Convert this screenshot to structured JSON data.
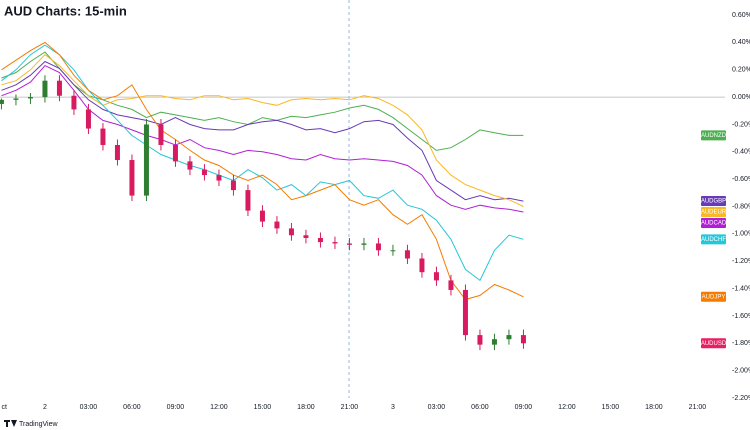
{
  "chart_data": {
    "type": "line",
    "title": "AUD Charts: 15-min",
    "watermark": "TradingView",
    "x": [
      -3,
      -2,
      -1,
      0,
      1,
      2,
      3,
      4,
      5,
      6,
      7,
      8,
      9,
      10,
      11,
      12,
      13,
      14,
      15,
      16,
      17,
      18,
      19,
      20,
      21,
      22,
      23,
      24,
      25,
      26,
      27,
      28,
      29,
      30,
      31,
      32,
      33
    ],
    "xlim": [
      -3.1,
      46.9
    ],
    "xticks": [
      {
        "value": -3,
        "label": "ct"
      },
      {
        "value": 0,
        "label": "2"
      },
      {
        "value": 3,
        "label": "03:00"
      },
      {
        "value": 6,
        "label": "06:00"
      },
      {
        "value": 9,
        "label": "09:00"
      },
      {
        "value": 12,
        "label": "12:00"
      },
      {
        "value": 15,
        "label": "15:00"
      },
      {
        "value": 18,
        "label": "18:00"
      },
      {
        "value": 21,
        "label": "21:00"
      },
      {
        "value": 24,
        "label": "3"
      },
      {
        "value": 27,
        "label": "03:00"
      },
      {
        "value": 30,
        "label": "06:00"
      },
      {
        "value": 33,
        "label": "09:00"
      },
      {
        "value": 36,
        "label": "12:00"
      },
      {
        "value": 39,
        "label": "15:00"
      },
      {
        "value": 42,
        "label": "18:00"
      },
      {
        "value": 45,
        "label": "21:00"
      }
    ],
    "ylim": [
      -2.2,
      0.71
    ],
    "yticks": [
      {
        "value": 0.6,
        "label": "0.60%"
      },
      {
        "value": 0.4,
        "label": "0.40%"
      },
      {
        "value": 0.2,
        "label": "0.20%"
      },
      {
        "value": 0,
        "label": "0.00%"
      },
      {
        "value": -0.2,
        "label": "-0.20%"
      },
      {
        "value": -0.4,
        "label": "-0.40%"
      },
      {
        "value": -0.6,
        "label": "-0.60%"
      },
      {
        "value": -0.8,
        "label": "-0.80%"
      },
      {
        "value": -1.0,
        "label": "-1.00%"
      },
      {
        "value": -1.2,
        "label": "-1.20%"
      },
      {
        "value": -1.4,
        "label": "-1.40%"
      },
      {
        "value": -1.6,
        "label": "-1.60%"
      },
      {
        "value": -1.8,
        "label": "-1.80%"
      },
      {
        "value": -2.0,
        "label": "-2.00%"
      },
      {
        "value": -2.2,
        "label": "-2.20%"
      }
    ],
    "series": [
      {
        "name": "AUDNZD",
        "color": "#4caf50",
        "values": [
          0.14,
          0.18,
          0.26,
          0.33,
          0.21,
          0.09,
          0.01,
          -0.02,
          -0.06,
          -0.09,
          -0.15,
          -0.11,
          -0.13,
          -0.15,
          -0.17,
          -0.15,
          -0.18,
          -0.2,
          -0.15,
          -0.17,
          -0.14,
          -0.15,
          -0.13,
          -0.11,
          -0.08,
          -0.06,
          -0.09,
          -0.15,
          -0.23,
          -0.31,
          -0.39,
          -0.37,
          -0.31,
          -0.24,
          -0.26,
          -0.28,
          -0.28
        ]
      },
      {
        "name": "AUDGBP",
        "color": "#673ab7",
        "values": [
          0.05,
          0.09,
          0.16,
          0.26,
          0.21,
          0.09,
          -0.02,
          -0.09,
          -0.13,
          -0.15,
          -0.17,
          -0.2,
          -0.15,
          -0.2,
          -0.23,
          -0.24,
          -0.24,
          -0.2,
          -0.18,
          -0.17,
          -0.2,
          -0.24,
          -0.23,
          -0.26,
          -0.23,
          -0.18,
          -0.17,
          -0.2,
          -0.3,
          -0.39,
          -0.61,
          -0.68,
          -0.75,
          -0.72,
          -0.75,
          -0.74,
          -0.76
        ]
      },
      {
        "name": "AUDEUR",
        "color": "#f9b825",
        "values": [
          0.09,
          0.12,
          0.2,
          0.31,
          0.23,
          0.12,
          0.01,
          -0.06,
          -0.02,
          -0.01,
          0.01,
          0.01,
          -0.01,
          -0.02,
          0.01,
          0.01,
          -0.02,
          -0.01,
          -0.04,
          -0.06,
          -0.02,
          -0.01,
          -0.02,
          -0.01,
          -0.02,
          0.01,
          -0.01,
          -0.06,
          -0.13,
          -0.24,
          -0.46,
          -0.57,
          -0.64,
          -0.68,
          -0.72,
          -0.75,
          -0.8
        ]
      },
      {
        "name": "AUDCAD",
        "color": "#b01fd6",
        "values": [
          0.01,
          0.05,
          0.11,
          0.23,
          0.18,
          0.05,
          -0.09,
          -0.17,
          -0.2,
          -0.24,
          -0.28,
          -0.31,
          -0.35,
          -0.31,
          -0.37,
          -0.39,
          -0.42,
          -0.39,
          -0.4,
          -0.42,
          -0.45,
          -0.46,
          -0.42,
          -0.45,
          -0.46,
          -0.45,
          -0.46,
          -0.47,
          -0.5,
          -0.57,
          -0.72,
          -0.79,
          -0.82,
          -0.79,
          -0.81,
          -0.82,
          -0.84
        ]
      },
      {
        "name": "AUDCHF",
        "color": "#26c6da",
        "values": [
          0.12,
          0.2,
          0.31,
          0.38,
          0.31,
          0.2,
          0.05,
          -0.06,
          -0.17,
          -0.28,
          -0.35,
          -0.42,
          -0.46,
          -0.5,
          -0.53,
          -0.57,
          -0.61,
          -0.53,
          -0.59,
          -0.68,
          -0.64,
          -0.72,
          -0.62,
          -0.64,
          -0.61,
          -0.72,
          -0.74,
          -0.68,
          -0.79,
          -0.82,
          -0.9,
          -1.04,
          -1.26,
          -1.34,
          -1.12,
          -1.01,
          -1.04
        ]
      },
      {
        "name": "AUDJPY",
        "color": "#f57c00",
        "values": [
          0.2,
          0.27,
          0.34,
          0.4,
          0.31,
          0.16,
          0.05,
          -0.02,
          0.01,
          0.09,
          -0.09,
          -0.24,
          -0.31,
          -0.39,
          -0.46,
          -0.5,
          -0.57,
          -0.61,
          -0.57,
          -0.64,
          -0.75,
          -0.72,
          -0.68,
          -0.64,
          -0.75,
          -0.79,
          -0.75,
          -0.86,
          -0.93,
          -0.86,
          -1.04,
          -1.34,
          -1.48,
          -1.45,
          -1.37,
          -1.41,
          -1.46
        ]
      }
    ],
    "candles": {
      "name": "AUDUSD",
      "color": "#e91e63",
      "up_color": "#2e7d32",
      "down_color": "#d81b60",
      "open": [
        -0.05,
        -0.02,
        -0.01,
        0.0,
        0.12,
        0.01,
        -0.09,
        -0.23,
        -0.35,
        -0.46,
        -0.72,
        -0.2,
        -0.35,
        -0.47,
        -0.53,
        -0.57,
        -0.61,
        -0.68,
        -0.83,
        -0.91,
        -0.96,
        -1.01,
        -1.03,
        -1.06,
        -1.07,
        -1.08,
        -1.07,
        -1.12,
        -1.12,
        -1.18,
        -1.28,
        -1.34,
        -1.41,
        -1.74,
        -1.81,
        -1.77,
        -1.74
      ],
      "high": [
        -0.01,
        0.02,
        0.03,
        0.16,
        0.16,
        0.05,
        -0.05,
        -0.19,
        -0.31,
        -0.42,
        -0.16,
        -0.16,
        -0.31,
        -0.43,
        -0.49,
        -0.53,
        -0.57,
        -0.64,
        -0.79,
        -0.87,
        -0.92,
        -0.97,
        -0.99,
        -1.02,
        -1.03,
        -1.03,
        -1.03,
        -1.08,
        -1.08,
        -1.14,
        -1.24,
        -1.3,
        -1.37,
        -1.7,
        -1.73,
        -1.7,
        -1.7
      ],
      "low": [
        -0.09,
        -0.06,
        -0.05,
        -0.04,
        -0.03,
        -0.13,
        -0.27,
        -0.39,
        -0.5,
        -0.76,
        -0.76,
        -0.39,
        -0.51,
        -0.57,
        -0.61,
        -0.65,
        -0.72,
        -0.87,
        -0.95,
        -1.0,
        -1.05,
        -1.07,
        -1.1,
        -1.11,
        -1.12,
        -1.12,
        -1.16,
        -1.16,
        -1.22,
        -1.32,
        -1.38,
        -1.45,
        -1.78,
        -1.85,
        -1.85,
        -1.81,
        -1.84
      ],
      "close": [
        -0.02,
        -0.01,
        0.0,
        0.12,
        0.01,
        -0.09,
        -0.23,
        -0.35,
        -0.46,
        -0.72,
        -0.2,
        -0.35,
        -0.47,
        -0.53,
        -0.57,
        -0.61,
        -0.68,
        -0.83,
        -0.91,
        -0.96,
        -1.01,
        -1.03,
        -1.06,
        -1.07,
        -1.08,
        -1.07,
        -1.12,
        -1.12,
        -1.18,
        -1.28,
        -1.34,
        -1.41,
        -1.74,
        -1.81,
        -1.77,
        -1.74,
        -1.8
      ]
    }
  }
}
